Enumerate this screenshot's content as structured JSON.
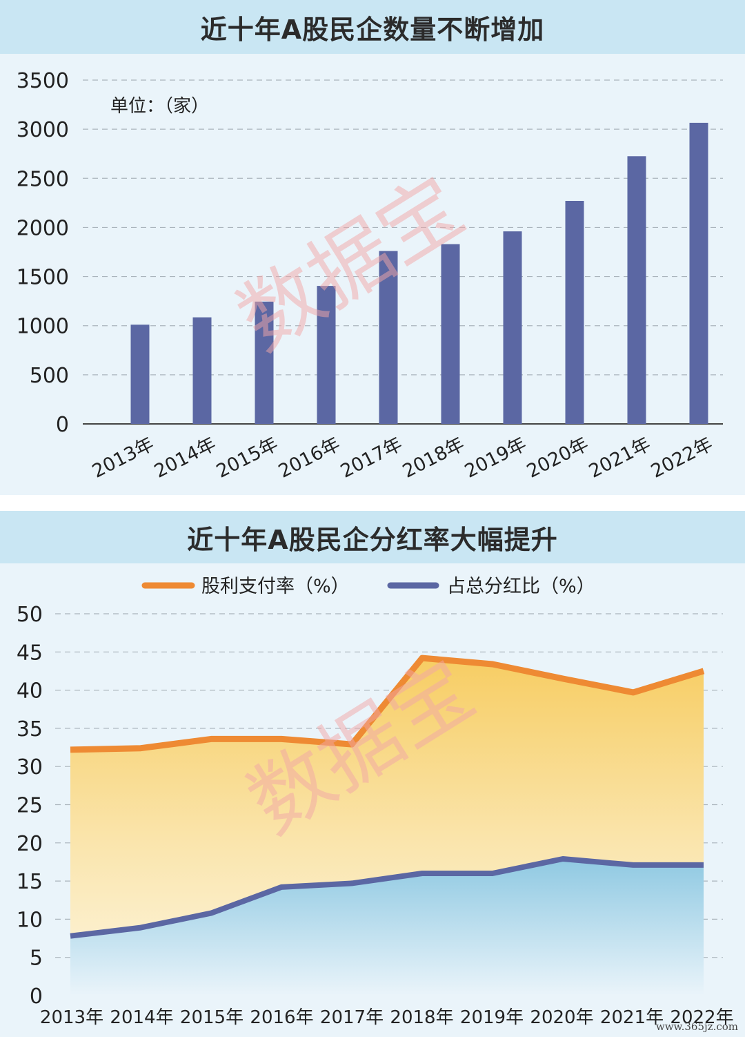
{
  "panel1": {
    "title": "近十年A股民企数量不断增加",
    "unit_label": "单位：（家）"
  },
  "panel2": {
    "title": "近十年A股民企分红率大幅提升"
  },
  "watermark": "数据宝",
  "site_mark": "www.365jz.com",
  "colors": {
    "bar": "#5b67a3",
    "payout_line": "#ee8a33",
    "share_line": "#5b67a3",
    "title_bar": "#c9e6f3",
    "panel_bg": "#eaf4fa",
    "watermark": "#f2a7a7"
  },
  "chart_data": [
    {
      "type": "bar",
      "title": "近十年A股民企数量不断增加",
      "unit": "单位：（家）",
      "categories": [
        "2013年",
        "2014年",
        "2015年",
        "2016年",
        "2017年",
        "2018年",
        "2019年",
        "2020年",
        "2021年",
        "2022年"
      ],
      "values": [
        1010,
        1085,
        1245,
        1405,
        1760,
        1830,
        1960,
        2270,
        2725,
        3065
      ],
      "ylim": [
        0,
        3500
      ],
      "yticks": [
        0,
        500,
        1000,
        1500,
        2000,
        2500,
        3000,
        3500
      ],
      "grid": true
    },
    {
      "type": "area",
      "title": "近十年A股民企分红率大幅提升",
      "categories": [
        "2013年",
        "2014年",
        "2015年",
        "2016年",
        "2017年",
        "2018年",
        "2019年",
        "2020年",
        "2021年",
        "2022年"
      ],
      "series": [
        {
          "name": "股利支付率（%）",
          "values": [
            32.2,
            32.4,
            33.6,
            33.6,
            32.9,
            44.2,
            43.4,
            41.5,
            39.7,
            42.5
          ]
        },
        {
          "name": "占总分红比（%）",
          "values": [
            7.8,
            8.9,
            10.8,
            14.2,
            14.7,
            16.0,
            16.0,
            17.9,
            17.1,
            17.1
          ]
        }
      ],
      "ylim": [
        0,
        50
      ],
      "yticks": [
        0,
        5,
        10,
        15,
        20,
        25,
        30,
        35,
        40,
        45,
        50
      ],
      "legend_position": "top-center",
      "grid": true
    }
  ]
}
